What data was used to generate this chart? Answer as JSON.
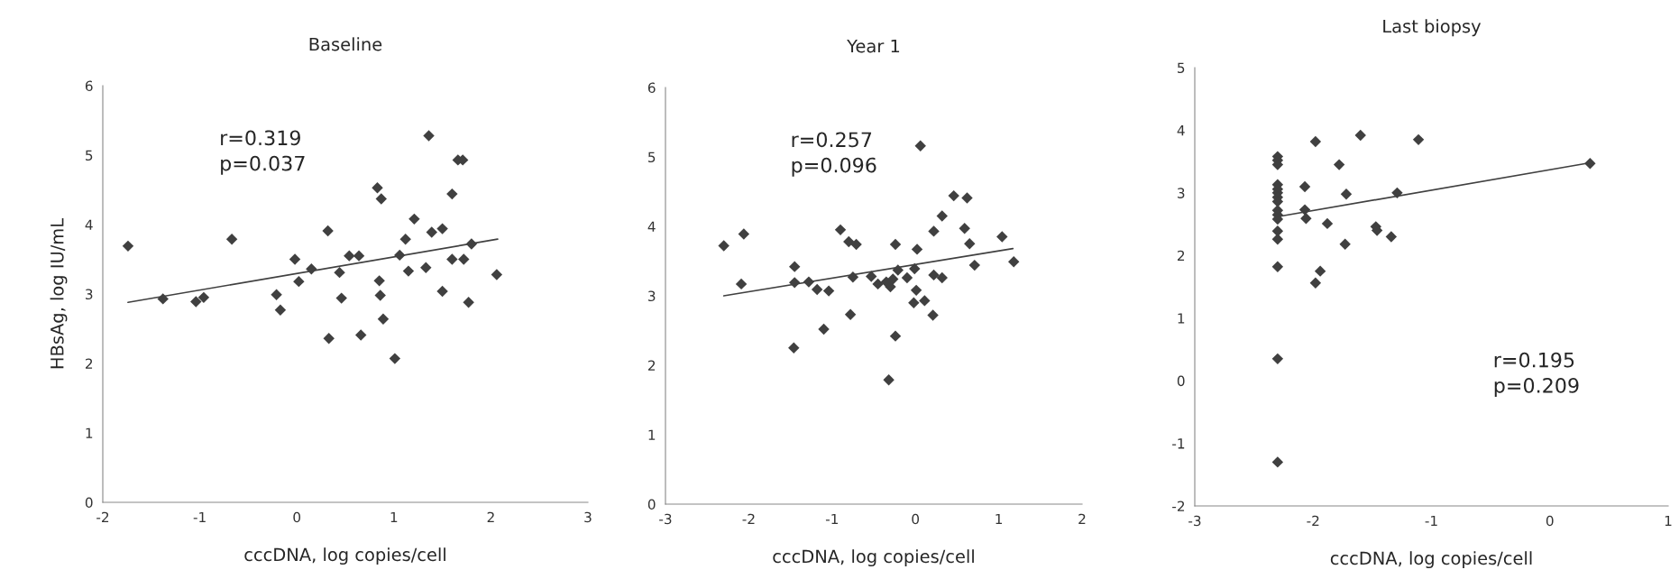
{
  "chart_data": [
    {
      "type": "scatter",
      "title": "Baseline",
      "xlabel": "cccDNA, log copies/cell",
      "ylabel": "HBsAg, log IU/mL",
      "grid": false,
      "legend": false,
      "xlim": [
        -2,
        3
      ],
      "xticks": [
        -2,
        -1,
        0,
        1,
        2,
        3
      ],
      "ylim": [
        0,
        6
      ],
      "yticks": [
        0,
        1,
        2,
        3,
        4,
        5,
        6
      ],
      "annotations": [
        "r=0.319\np=0.037"
      ],
      "series": [
        {
          "marker": "diamond",
          "color": "#404040",
          "x": [
            -1.74,
            -1.38,
            -1.04,
            -0.96,
            -0.67,
            -0.21,
            -0.17,
            -0.02,
            0.02,
            0.15,
            0.32,
            0.33,
            0.44,
            0.46,
            0.54,
            0.64,
            0.66,
            0.83,
            0.87,
            0.85,
            0.86,
            0.89,
            1.01,
            1.06,
            1.12,
            1.15,
            1.21,
            1.33,
            1.36,
            1.39,
            1.5,
            1.5,
            1.6,
            1.6,
            1.66,
            1.71,
            1.72,
            1.77,
            1.8,
            2.06
          ],
          "values": [
            3.69,
            2.93,
            2.89,
            2.95,
            3.79,
            2.99,
            2.77,
            3.5,
            3.18,
            3.36,
            3.91,
            2.36,
            3.31,
            2.94,
            3.55,
            3.55,
            2.41,
            4.53,
            4.37,
            3.19,
            2.98,
            2.64,
            2.07,
            3.56,
            3.79,
            3.33,
            4.08,
            3.38,
            5.28,
            3.89,
            3.94,
            3.04,
            4.44,
            3.5,
            4.93,
            4.93,
            3.5,
            2.88,
            3.72,
            3.28
          ]
        },
        {
          "type": "line",
          "marker": "none",
          "color": "#404040",
          "x": [
            -1.74,
            2.07
          ],
          "values": [
            2.88,
            3.79
          ]
        }
      ]
    },
    {
      "type": "scatter",
      "title": "Year 1",
      "xlabel": "cccDNA, log copies/cell",
      "grid": false,
      "legend": false,
      "xlim": [
        -3,
        2
      ],
      "xticks": [
        -3,
        -2,
        -1,
        0,
        1,
        2
      ],
      "ylim": [
        0,
        6
      ],
      "yticks": [
        0,
        1,
        2,
        3,
        4,
        5,
        6
      ],
      "annotations": [
        "r=0.257\np=0.096"
      ],
      "series": [
        {
          "marker": "diamond",
          "color": "#404040",
          "x": [
            -2.3,
            -2.06,
            -2.09,
            -1.45,
            -1.45,
            -1.46,
            -1.28,
            -1.18,
            -1.04,
            -1.1,
            -0.9,
            -0.8,
            -0.71,
            -0.75,
            -0.78,
            -0.53,
            -0.45,
            -0.35,
            -0.3,
            -0.27,
            -0.24,
            -0.24,
            -0.32,
            -0.21,
            -0.1,
            -0.01,
            0.02,
            0.01,
            -0.02,
            0.06,
            0.11,
            0.22,
            0.22,
            0.32,
            0.21,
            0.32,
            0.46,
            0.62,
            0.59,
            0.65,
            0.71,
            1.04,
            1.18
          ],
          "values": [
            3.72,
            3.89,
            3.17,
            3.42,
            3.19,
            2.25,
            3.2,
            3.09,
            3.07,
            2.52,
            3.95,
            3.78,
            3.74,
            3.27,
            2.73,
            3.28,
            3.17,
            3.2,
            3.13,
            3.24,
            3.74,
            2.42,
            1.79,
            3.37,
            3.26,
            3.39,
            3.67,
            3.08,
            2.9,
            5.16,
            2.93,
            3.93,
            3.3,
            3.26,
            2.72,
            4.15,
            4.44,
            4.41,
            3.97,
            3.75,
            3.44,
            3.85,
            3.49
          ]
        },
        {
          "type": "line",
          "marker": "none",
          "color": "#404040",
          "x": [
            -2.3,
            1.17
          ],
          "values": [
            3.0,
            3.68
          ]
        }
      ]
    },
    {
      "type": "scatter",
      "title": "Last biopsy",
      "xlabel": "cccDNA, log copies/cell",
      "grid": false,
      "legend": false,
      "xlim": [
        -3,
        1
      ],
      "xticks": [
        -3,
        -2,
        -1,
        0,
        1
      ],
      "ylim": [
        -2,
        5
      ],
      "yticks": [
        -2,
        -1,
        0,
        1,
        2,
        3,
        4,
        5
      ],
      "annotations": [
        "r=0.195\np=0.209"
      ],
      "series": [
        {
          "marker": "diamond",
          "color": "#404040",
          "x": [
            -2.3,
            -2.3,
            -2.3,
            -2.3,
            -2.3,
            -2.3,
            -2.3,
            -2.3,
            -2.3,
            -2.3,
            -2.3,
            -2.3,
            -2.3,
            -2.3,
            -2.3,
            -2.3,
            -1.98,
            -1.6,
            -1.11,
            -1.78,
            -2.07,
            -1.72,
            -1.29,
            -2.07,
            -2.06,
            -1.88,
            -1.47,
            -1.46,
            -1.34,
            -1.73,
            -1.94,
            -1.98,
            0.34
          ],
          "values": [
            3.58,
            3.52,
            3.45,
            3.13,
            3.06,
            3.0,
            2.93,
            2.86,
            2.72,
            2.65,
            2.58,
            2.39,
            2.26,
            1.82,
            0.35,
            -1.3,
            3.82,
            3.92,
            3.85,
            3.45,
            3.1,
            2.98,
            3.0,
            2.73,
            2.59,
            2.51,
            2.46,
            2.4,
            2.3,
            2.18,
            1.75,
            1.56,
            3.47
          ]
        },
        {
          "type": "line",
          "marker": "none",
          "color": "#404040",
          "x": [
            -2.3,
            0.34
          ],
          "values": [
            2.62,
            3.48
          ]
        }
      ]
    }
  ]
}
